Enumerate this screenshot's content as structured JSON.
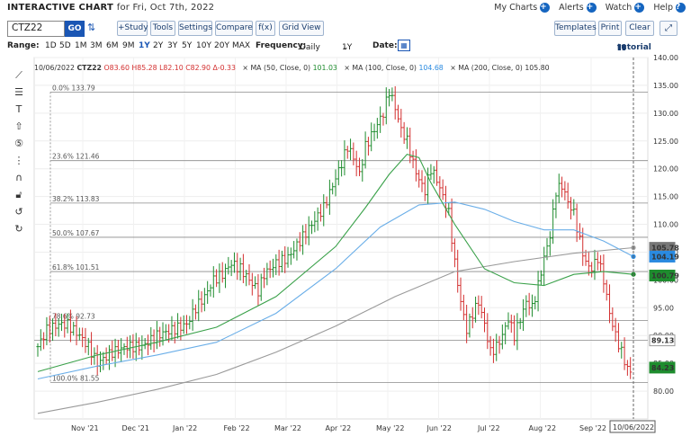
{
  "header": {
    "title": "INTERACTIVE CHART",
    "subtitle": "for Fri, Oct 7th, 2022",
    "links": {
      "my_charts": "My Charts",
      "alerts": "Alerts",
      "watch": "Watch",
      "help": "Help"
    }
  },
  "toolbar": {
    "symbol": "CTZ22",
    "go": "GO",
    "study": "+Study",
    "tools": "Tools",
    "settings": "Settings",
    "compare": "Compare",
    "fx": "f(x)",
    "grid_view": "Grid View",
    "templates": "Templates",
    "print": "Print",
    "clear": "Clear"
  },
  "range": {
    "label": "Range:",
    "options": [
      "1D",
      "5D",
      "1M",
      "3M",
      "6M",
      "9M",
      "1Y",
      "2Y",
      "3Y",
      "5Y",
      "10Y",
      "20Y",
      "MAX"
    ],
    "selected": "1Y",
    "frequency_label": "Frequency:",
    "frequency": "Daily",
    "period": "1Y",
    "date_label": "Date:",
    "tutorial": "tutorial"
  },
  "legend": {
    "date": "10/06/2022",
    "sym": "CTZ22",
    "ohlc": "O83.60 H85.28 L82.10 C82.90 Δ-0.33",
    "ma50": "MA (50, Close, 0)",
    "ma50_val": "101.03",
    "ma100": "MA (100, Close, 0)",
    "ma100_val": "104.68",
    "ma200": "MA (200, Close, 0)",
    "ma200_val": "105.80"
  },
  "colors": {
    "up": "#1e8c2e",
    "down": "#d32f2f",
    "ma50": "#3aa14a",
    "ma100": "#6aaee8",
    "ma200": "#9a9a9a",
    "accent": "#1a56b4"
  },
  "chart_data": {
    "type": "ohlc",
    "ylim": [
      75,
      140
    ],
    "yticks": [
      80,
      85,
      90,
      95,
      100,
      105,
      110,
      115,
      120,
      125,
      130,
      135,
      140
    ],
    "x_labels": [
      "Nov '21",
      "Dec '21",
      "Jan '22",
      "Feb '22",
      "Mar '22",
      "Apr '22",
      "May '22",
      "Jun '22",
      "Jul '22",
      "Aug '22",
      "Sep '22"
    ],
    "cursor_date": "10/06/2022",
    "fib_levels": [
      {
        "label": "0.0% 133.79",
        "value": 133.79
      },
      {
        "label": "23.6% 121.46",
        "value": 121.46
      },
      {
        "label": "38.2% 113.83",
        "value": 113.83
      },
      {
        "label": "50.0% 107.67",
        "value": 107.67
      },
      {
        "label": "61.8% 101.51",
        "value": 101.51
      },
      {
        "label": "78.6% 92.73",
        "value": 92.73
      },
      {
        "label": "100.0% 81.55",
        "value": 81.55
      }
    ],
    "hlines": [
      89.13
    ],
    "price_tags": [
      {
        "value": 105.78,
        "label": "105.78",
        "color": "#777777"
      },
      {
        "value": 104.19,
        "label": "104.19",
        "color": "#2a8ae0"
      },
      {
        "value": 100.79,
        "label": "100.79",
        "color": "#1e8c2e"
      },
      {
        "value": 89.13,
        "label": "89.13",
        "color": "#ffffff"
      },
      {
        "value": 84.23,
        "label": "84.23",
        "color": "#1e8c2e"
      }
    ],
    "price": [
      [
        0,
        88
      ],
      [
        3,
        91
      ],
      [
        7,
        92
      ],
      [
        10,
        92
      ],
      [
        14,
        90
      ],
      [
        17,
        88
      ],
      [
        20,
        85
      ],
      [
        25,
        87
      ],
      [
        30,
        88
      ],
      [
        35,
        88
      ],
      [
        40,
        90
      ],
      [
        45,
        91
      ],
      [
        50,
        92
      ],
      [
        53,
        95
      ],
      [
        56,
        97
      ],
      [
        59,
        100
      ],
      [
        62,
        101
      ],
      [
        65,
        103
      ],
      [
        68,
        102
      ],
      [
        71,
        100
      ],
      [
        74,
        98
      ],
      [
        76,
        101
      ],
      [
        80,
        103
      ],
      [
        84,
        104
      ],
      [
        88,
        107
      ],
      [
        92,
        110
      ],
      [
        96,
        113
      ],
      [
        99,
        117
      ],
      [
        102,
        121
      ],
      [
        104,
        124
      ],
      [
        106,
        122
      ],
      [
        108,
        119
      ],
      [
        110,
        124
      ],
      [
        113,
        127
      ],
      [
        116,
        130
      ],
      [
        118,
        134
      ],
      [
        120,
        131
      ],
      [
        122,
        127
      ],
      [
        124,
        125
      ],
      [
        126,
        121
      ],
      [
        128,
        118
      ],
      [
        130,
        116
      ],
      [
        132,
        120
      ],
      [
        134,
        118
      ],
      [
        136,
        115
      ],
      [
        138,
        112
      ],
      [
        140,
        103
      ],
      [
        142,
        96
      ],
      [
        144,
        91
      ],
      [
        146,
        94
      ],
      [
        148,
        96
      ],
      [
        150,
        92
      ],
      [
        152,
        87
      ],
      [
        154,
        88
      ],
      [
        156,
        90
      ],
      [
        158,
        93
      ],
      [
        160,
        90
      ],
      [
        162,
        93
      ],
      [
        164,
        96
      ],
      [
        166,
        95
      ],
      [
        168,
        99
      ],
      [
        170,
        104
      ],
      [
        172,
        108
      ],
      [
        174,
        116
      ],
      [
        176,
        117
      ],
      [
        178,
        114
      ],
      [
        180,
        112
      ],
      [
        182,
        107
      ],
      [
        184,
        103
      ],
      [
        186,
        102
      ],
      [
        188,
        104
      ],
      [
        190,
        100
      ],
      [
        192,
        94
      ],
      [
        194,
        90
      ],
      [
        196,
        87
      ],
      [
        198,
        84
      ],
      [
        200,
        83
      ]
    ],
    "ma50": [
      [
        0,
        83.5
      ],
      [
        20,
        86.5
      ],
      [
        40,
        88.8
      ],
      [
        60,
        91.5
      ],
      [
        80,
        97
      ],
      [
        100,
        106
      ],
      [
        110,
        113
      ],
      [
        118,
        119
      ],
      [
        124,
        122.6
      ],
      [
        128,
        122
      ],
      [
        132,
        117.5
      ],
      [
        140,
        110
      ],
      [
        150,
        102
      ],
      [
        160,
        99.5
      ],
      [
        170,
        99
      ],
      [
        180,
        101
      ],
      [
        190,
        101.5
      ],
      [
        200,
        101
      ]
    ],
    "ma100": [
      [
        0,
        82.2
      ],
      [
        20,
        84.5
      ],
      [
        40,
        86.5
      ],
      [
        60,
        88.8
      ],
      [
        80,
        94
      ],
      [
        100,
        102
      ],
      [
        115,
        109.5
      ],
      [
        128,
        113.5
      ],
      [
        140,
        114
      ],
      [
        150,
        112.7
      ],
      [
        160,
        110.5
      ],
      [
        170,
        109
      ],
      [
        180,
        109
      ],
      [
        190,
        107
      ],
      [
        200,
        104.2
      ]
    ],
    "ma200": [
      [
        0,
        76
      ],
      [
        20,
        78
      ],
      [
        40,
        80.3
      ],
      [
        60,
        83
      ],
      [
        80,
        87
      ],
      [
        100,
        91.7
      ],
      [
        120,
        97
      ],
      [
        140,
        101.5
      ],
      [
        160,
        103.3
      ],
      [
        180,
        104.8
      ],
      [
        200,
        105.8
      ]
    ]
  }
}
